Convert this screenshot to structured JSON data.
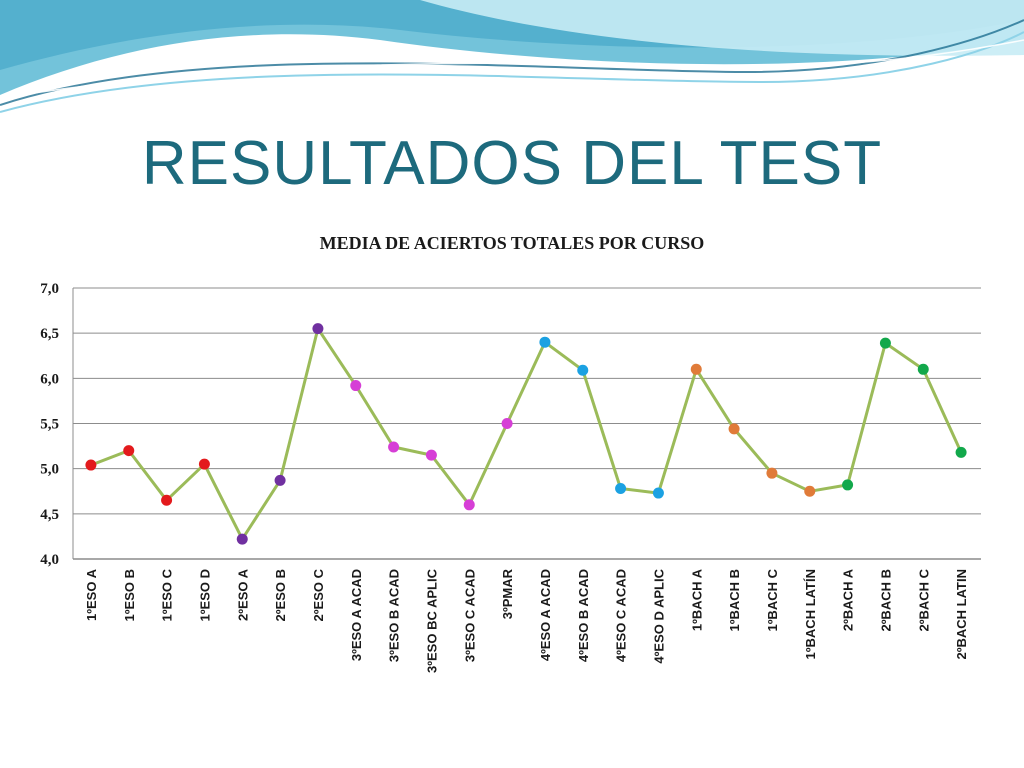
{
  "slide": {
    "title": "RESULTADOS DEL TEST"
  },
  "colors": {
    "title": "#1d6a7d",
    "line": "#9bbb59",
    "grid": "#8c8c8c",
    "banner_dark": "#5bb8d4",
    "banner_light": "#c8ecf5"
  },
  "chart_data": {
    "type": "line",
    "title": "MEDIA DE ACIERTOS TOTALES POR CURSO",
    "xlabel": "",
    "ylabel": "",
    "ylim": [
      4.0,
      7.0
    ],
    "yticks": [
      "4,0",
      "4,5",
      "5,0",
      "5,5",
      "6,0",
      "6,5",
      "7,0"
    ],
    "grid": true,
    "legend": "none",
    "categories": [
      "1ºESO A",
      "1ºESO B",
      "1ºESO C",
      "1ºESO D",
      "2ºESO A",
      "2ºESO B",
      "2ºESO C",
      "3ºESO A ACAD",
      "3ºESO B ACAD",
      "3ºESO BC APLIC",
      "3ºESO C ACAD",
      "3ºPMAR",
      "4ºESO A ACAD",
      "4ºESO B ACAD",
      "4ºESO C ACAD",
      "4ºESO D APLIC",
      "1ºBACH A",
      "1ºBACH B",
      "1ºBACH C",
      "1ºBACH LATÍN",
      "2ºBACH A",
      "2ºBACH B",
      "2ºBACH C",
      "2ºBACH LATIN"
    ],
    "values": [
      5.04,
      5.2,
      4.65,
      5.05,
      4.22,
      4.87,
      6.55,
      5.92,
      5.24,
      5.15,
      4.6,
      5.5,
      6.4,
      6.09,
      4.78,
      4.73,
      6.1,
      5.44,
      4.95,
      4.75,
      4.82,
      6.39,
      6.1,
      5.18
    ],
    "marker_colors": [
      "#e31a1c",
      "#e31a1c",
      "#e31a1c",
      "#e31a1c",
      "#7030a0",
      "#7030a0",
      "#7030a0",
      "#d63fd6",
      "#d63fd6",
      "#d63fd6",
      "#d63fd6",
      "#d63fd6",
      "#1ba1e2",
      "#1ba1e2",
      "#1ba1e2",
      "#1ba1e2",
      "#e07b39",
      "#e07b39",
      "#e07b39",
      "#e07b39",
      "#12a84b",
      "#12a84b",
      "#12a84b",
      "#12a84b"
    ]
  }
}
